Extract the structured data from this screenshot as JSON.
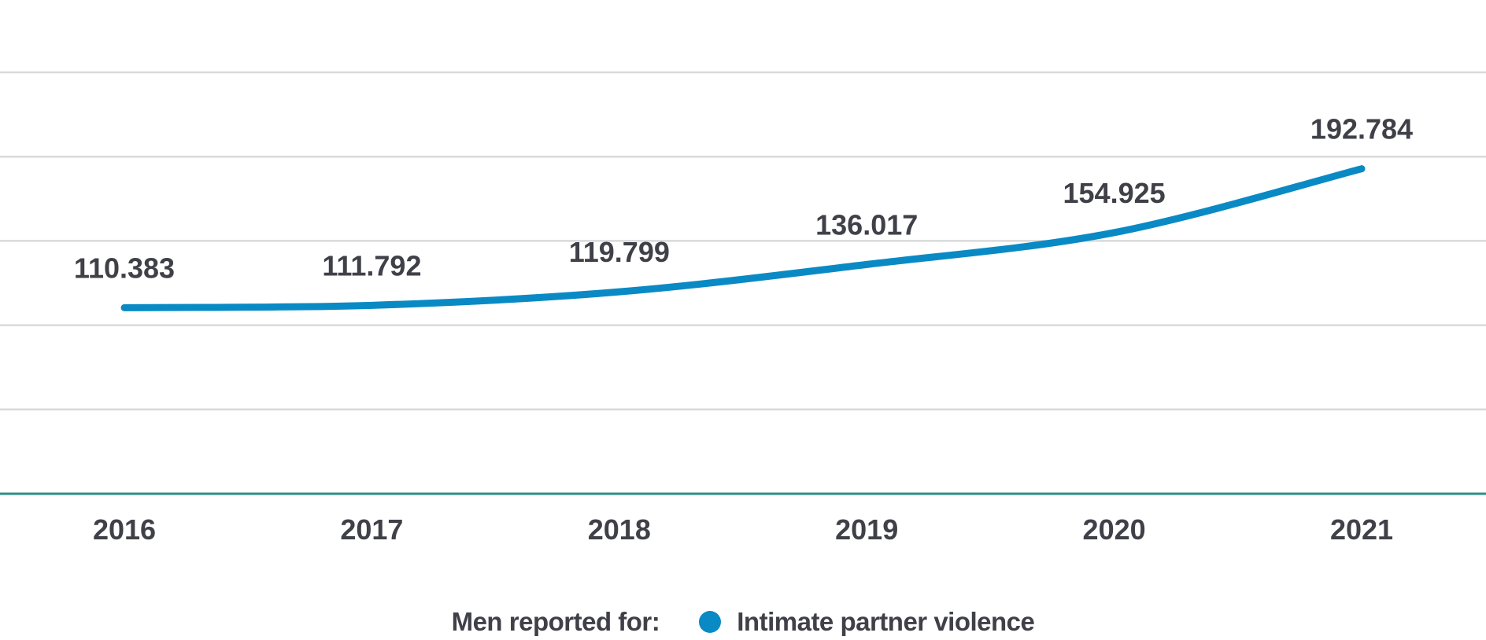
{
  "chart_data": {
    "type": "line",
    "title": "",
    "xlabel": "",
    "ylabel": "",
    "categories": [
      "2016",
      "2017",
      "2018",
      "2019",
      "2020",
      "2021"
    ],
    "series": [
      {
        "name": "Intimate partner violence",
        "values": [
          110.383,
          111.792,
          119.799,
          136.017,
          154.925,
          192.784
        ],
        "labels": [
          "110.383",
          "111.792",
          "119.799",
          "136.017",
          "154.925",
          "192.784"
        ],
        "color": "#0a8ac4"
      }
    ],
    "ylim": [
      0,
      250
    ],
    "grid": true,
    "gridline_count": 5,
    "legend_title": "Men reported for:",
    "legend_position": "bottom-center"
  },
  "colors": {
    "gridline": "#d9d9d9",
    "baseline": "#2e8f86",
    "text": "#3f4048",
    "series": "#0a8ac4"
  }
}
